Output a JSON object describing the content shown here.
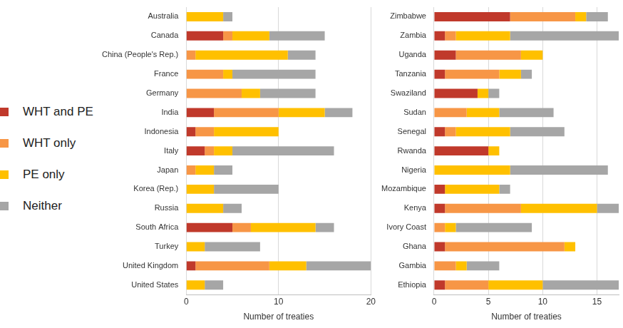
{
  "chart_data": [
    {
      "type": "bar",
      "orientation": "horizontal",
      "stacked": true,
      "grid": true,
      "legend": "left",
      "x_label": "Number of treaties",
      "categories": [
        "Australia",
        "Canada",
        "China (People's Rep.)",
        "France",
        "Germany",
        "India",
        "Indonesia",
        "Italy",
        "Japan",
        "Korea (Rep.)",
        "Russia",
        "South Africa",
        "Turkey",
        "United Kingdom",
        "United States"
      ],
      "series": [
        {
          "name": "WHT and PE",
          "color": "#c0392b",
          "values": [
            0,
            4,
            0,
            0,
            0,
            3,
            1,
            2,
            0,
            0,
            0,
            5,
            0,
            1,
            0
          ]
        },
        {
          "name": "WHT only",
          "color": "#f79646",
          "values": [
            0,
            1,
            1,
            4,
            6,
            7,
            2,
            1,
            1,
            0,
            0,
            2,
            0,
            8,
            0
          ]
        },
        {
          "name": "PE only",
          "color": "#ffc000",
          "values": [
            4,
            4,
            10,
            1,
            2,
            5,
            7,
            2,
            2,
            3,
            4,
            7,
            2,
            4,
            2
          ]
        },
        {
          "name": "Neither",
          "color": "#a6a6a6",
          "values": [
            1,
            6,
            3,
            9,
            6,
            3,
            0,
            11,
            2,
            7,
            2,
            2,
            6,
            7,
            2
          ]
        }
      ],
      "xlim": [
        0,
        20
      ],
      "xticks": [
        0,
        10,
        20
      ]
    },
    {
      "type": "bar",
      "orientation": "horizontal",
      "stacked": true,
      "grid": true,
      "x_label": "Number of treaties",
      "categories": [
        "Zimbabwe",
        "Zambia",
        "Uganda",
        "Tanzania",
        "Swaziland",
        "Sudan",
        "Senegal",
        "Rwanda",
        "Nigeria",
        "Mozambique",
        "Kenya",
        "Ivory Coast",
        "Ghana",
        "Gambia",
        "Ethiopia"
      ],
      "series": [
        {
          "name": "WHT and PE",
          "color": "#c0392b",
          "values": [
            7,
            1,
            2,
            1,
            4,
            0,
            1,
            5,
            0,
            1,
            1,
            0,
            1,
            0,
            1
          ]
        },
        {
          "name": "WHT only",
          "color": "#f79646",
          "values": [
            6,
            1,
            6,
            5,
            0,
            3,
            1,
            0,
            0,
            0,
            7,
            1,
            11,
            2,
            4
          ]
        },
        {
          "name": "PE only",
          "color": "#ffc000",
          "values": [
            1,
            5,
            2,
            2,
            1,
            3,
            5,
            1,
            7,
            5,
            7,
            1,
            1,
            1,
            5
          ]
        },
        {
          "name": "Neither",
          "color": "#a6a6a6",
          "values": [
            2,
            10,
            0,
            1,
            1,
            5,
            5,
            0,
            9,
            1,
            2,
            7,
            0,
            3,
            7
          ]
        }
      ],
      "xlim": [
        0,
        17
      ],
      "xticks": [
        0,
        5,
        10,
        15
      ]
    }
  ]
}
